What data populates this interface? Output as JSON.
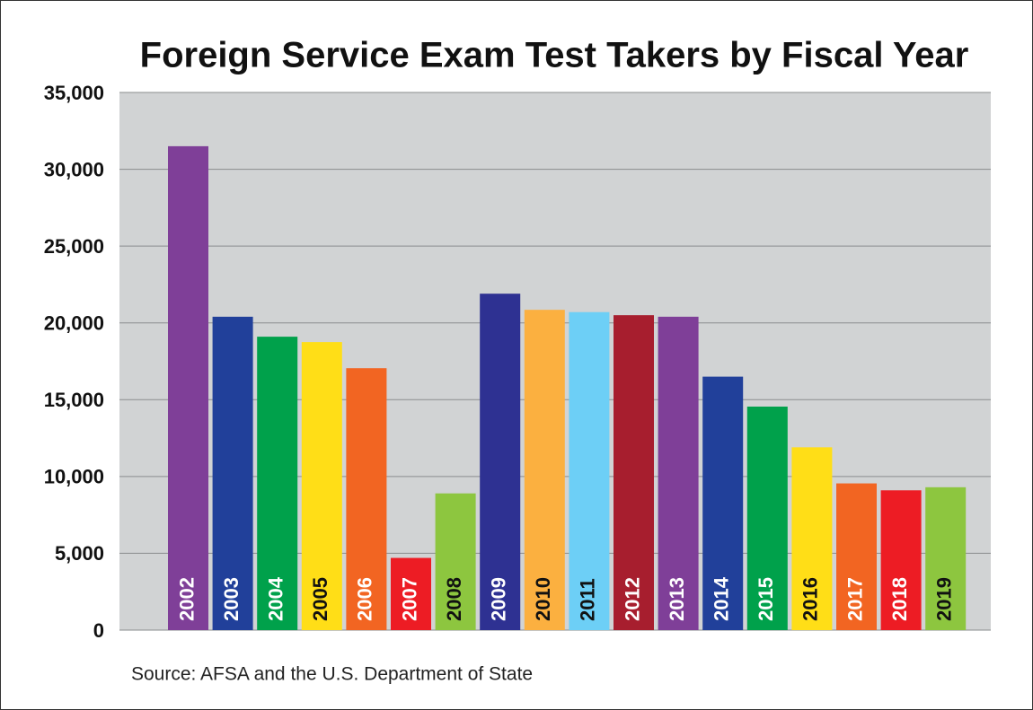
{
  "chart_data": {
    "type": "bar",
    "title": "Foreign Service Exam Test Takers by Fiscal Year",
    "source": "Source: AFSA and the U.S. Department of State",
    "categories": [
      "2002",
      "2003",
      "2004",
      "2005",
      "2006",
      "2007",
      "2008",
      "2009",
      "2010",
      "2011",
      "2012",
      "2013",
      "2014",
      "2015",
      "2016",
      "2017",
      "2018",
      "2019"
    ],
    "values": [
      31500,
      20400,
      19100,
      18750,
      17050,
      4700,
      8900,
      21900,
      20850,
      20700,
      20500,
      20400,
      16500,
      14550,
      11900,
      9550,
      9100,
      9300
    ],
    "colors": [
      "#7f3f98",
      "#21409a",
      "#00a14b",
      "#ffde17",
      "#f26522",
      "#ed1c24",
      "#8dc63f",
      "#2e3192",
      "#fbb040",
      "#6dcff6",
      "#a71e2e",
      "#7f3f98",
      "#21409a",
      "#00a14b",
      "#ffde17",
      "#f26522",
      "#ed1c24",
      "#8dc63f"
    ],
    "ylim": [
      0,
      35000
    ],
    "yticks": [
      0,
      {
        "value": 5000,
        "label": "5,000"
      },
      {
        "value": 10000,
        "label": "10,000"
      },
      {
        "value": 15000,
        "label": "15,000"
      },
      {
        "value": 20000,
        "label": "20,000"
      },
      {
        "value": 25000,
        "label": "25,000"
      },
      {
        "value": 30000,
        "label": "30,000"
      },
      {
        "value": 35000,
        "label": "35,000"
      }
    ],
    "grid": true
  }
}
